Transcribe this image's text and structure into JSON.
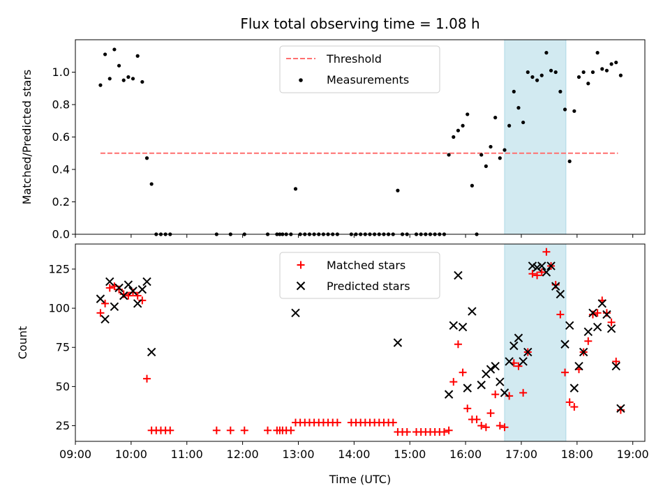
{
  "title": "Flux total observing time = 1.08 h",
  "colors": {
    "threshold": "#ff6f6f",
    "measurement": "#000000",
    "matched": "#ff0000",
    "predicted": "#000000",
    "highlight": "#add8e6"
  },
  "chart_data": [
    {
      "type": "scatter",
      "ylabel": "Matched/Predicted stars",
      "xlim": [
        "09:00",
        "19:13"
      ],
      "ylim": [
        0,
        1.2
      ],
      "yticks": [
        "0.0",
        "0.2",
        "0.4",
        "0.6",
        "0.8",
        "1.0"
      ],
      "highlight_span": [
        "16:42",
        "17:48"
      ],
      "threshold": {
        "name": "Threshold",
        "value": 0.5,
        "x_range": [
          "09:27",
          "18:44"
        ]
      },
      "legend": {
        "position": "top-center",
        "entries": [
          "Threshold",
          "Measurements"
        ]
      },
      "series": [
        {
          "name": "Measurements",
          "points": [
            [
              "09:27",
              0.92
            ],
            [
              "09:32",
              1.11
            ],
            [
              "09:37",
              0.96
            ],
            [
              "09:42",
              1.14
            ],
            [
              "09:47",
              1.04
            ],
            [
              "09:52",
              0.95
            ],
            [
              "09:57",
              0.97
            ],
            [
              "10:02",
              0.96
            ],
            [
              "10:07",
              1.1
            ],
            [
              "10:12",
              0.94
            ],
            [
              "10:17",
              0.47
            ],
            [
              "10:22",
              0.31
            ],
            [
              "10:27",
              0.0
            ],
            [
              "10:32",
              0.0
            ],
            [
              "10:37",
              0.0
            ],
            [
              "10:42",
              0.0
            ],
            [
              "11:32",
              0.0
            ],
            [
              "11:47",
              0.0
            ],
            [
              "12:02",
              0.0
            ],
            [
              "12:27",
              0.0
            ],
            [
              "12:37",
              0.0
            ],
            [
              "12:40",
              0.0
            ],
            [
              "12:43",
              0.0
            ],
            [
              "12:47",
              0.0
            ],
            [
              "12:52",
              0.0
            ],
            [
              "12:57",
              0.28
            ],
            [
              "13:02",
              0.0
            ],
            [
              "13:07",
              0.0
            ],
            [
              "13:12",
              0.0
            ],
            [
              "13:17",
              0.0
            ],
            [
              "13:22",
              0.0
            ],
            [
              "13:27",
              0.0
            ],
            [
              "13:32",
              0.0
            ],
            [
              "13:37",
              0.0
            ],
            [
              "13:42",
              0.0
            ],
            [
              "13:57",
              0.0
            ],
            [
              "14:02",
              0.0
            ],
            [
              "14:07",
              0.0
            ],
            [
              "14:12",
              0.0
            ],
            [
              "14:17",
              0.0
            ],
            [
              "14:22",
              0.0
            ],
            [
              "14:27",
              0.0
            ],
            [
              "14:32",
              0.0
            ],
            [
              "14:37",
              0.0
            ],
            [
              "14:42",
              0.0
            ],
            [
              "14:47",
              0.27
            ],
            [
              "14:52",
              0.0
            ],
            [
              "14:57",
              0.0
            ],
            [
              "15:07",
              0.0
            ],
            [
              "15:12",
              0.0
            ],
            [
              "15:17",
              0.0
            ],
            [
              "15:22",
              0.0
            ],
            [
              "15:27",
              0.0
            ],
            [
              "15:32",
              0.0
            ],
            [
              "15:37",
              0.0
            ],
            [
              "15:42",
              0.49
            ],
            [
              "15:47",
              0.6
            ],
            [
              "15:52",
              0.64
            ],
            [
              "15:57",
              0.67
            ],
            [
              "16:02",
              0.74
            ],
            [
              "16:07",
              0.3
            ],
            [
              "16:12",
              0.0
            ],
            [
              "16:17",
              0.49
            ],
            [
              "16:22",
              0.42
            ],
            [
              "16:27",
              0.54
            ],
            [
              "16:32",
              0.72
            ],
            [
              "16:37",
              0.47
            ],
            [
              "16:42",
              0.52
            ],
            [
              "16:47",
              0.67
            ],
            [
              "16:52",
              0.88
            ],
            [
              "16:57",
              0.78
            ],
            [
              "17:02",
              0.69
            ],
            [
              "17:07",
              1.0
            ],
            [
              "17:12",
              0.97
            ],
            [
              "17:17",
              0.95
            ],
            [
              "17:22",
              0.98
            ],
            [
              "17:27",
              1.12
            ],
            [
              "17:32",
              1.01
            ],
            [
              "17:37",
              1.0
            ],
            [
              "17:42",
              0.88
            ],
            [
              "17:47",
              0.77
            ],
            [
              "17:52",
              0.45
            ],
            [
              "17:57",
              0.76
            ],
            [
              "18:02",
              0.97
            ],
            [
              "18:07",
              1.0
            ],
            [
              "18:12",
              0.93
            ],
            [
              "18:17",
              1.0
            ],
            [
              "18:22",
              1.12
            ],
            [
              "18:27",
              1.02
            ],
            [
              "18:32",
              1.01
            ],
            [
              "18:37",
              1.05
            ],
            [
              "18:42",
              1.06
            ],
            [
              "18:47",
              0.98
            ]
          ]
        }
      ]
    },
    {
      "type": "scatter",
      "xlabel": "Time (UTC)",
      "ylabel": "Count",
      "xlim": [
        "09:00",
        "19:13"
      ],
      "ylim": [
        15,
        141
      ],
      "yticks": [
        "25",
        "50",
        "75",
        "100",
        "125"
      ],
      "xticks": [
        "09:00",
        "10:00",
        "11:00",
        "12:00",
        "13:00",
        "14:00",
        "15:00",
        "16:00",
        "17:00",
        "18:00",
        "19:00"
      ],
      "highlight_span": [
        "16:42",
        "17:48"
      ],
      "legend": {
        "position": "top-center",
        "entries": [
          "Matched stars",
          "Predicted stars"
        ]
      },
      "series": [
        {
          "name": "Matched stars",
          "marker": "plus",
          "points": [
            [
              "09:27",
              97
            ],
            [
              "09:32",
              103
            ],
            [
              "09:37",
              113
            ],
            [
              "09:42",
              114
            ],
            [
              "09:47",
              112
            ],
            [
              "09:52",
              109
            ],
            [
              "09:57",
              108
            ],
            [
              "10:02",
              110
            ],
            [
              "10:07",
              108
            ],
            [
              "10:12",
              105
            ],
            [
              "10:17",
              55
            ],
            [
              "10:22",
              22
            ],
            [
              "10:27",
              22
            ],
            [
              "10:32",
              22
            ],
            [
              "10:37",
              22
            ],
            [
              "10:42",
              22
            ],
            [
              "11:32",
              22
            ],
            [
              "11:47",
              22
            ],
            [
              "12:02",
              22
            ],
            [
              "12:27",
              22
            ],
            [
              "12:37",
              22
            ],
            [
              "12:40",
              22
            ],
            [
              "12:43",
              22
            ],
            [
              "12:47",
              22
            ],
            [
              "12:52",
              22
            ],
            [
              "12:57",
              27
            ],
            [
              "13:02",
              27
            ],
            [
              "13:07",
              27
            ],
            [
              "13:12",
              27
            ],
            [
              "13:17",
              27
            ],
            [
              "13:22",
              27
            ],
            [
              "13:27",
              27
            ],
            [
              "13:32",
              27
            ],
            [
              "13:37",
              27
            ],
            [
              "13:42",
              27
            ],
            [
              "13:57",
              27
            ],
            [
              "14:02",
              27
            ],
            [
              "14:07",
              27
            ],
            [
              "14:12",
              27
            ],
            [
              "14:17",
              27
            ],
            [
              "14:22",
              27
            ],
            [
              "14:27",
              27
            ],
            [
              "14:32",
              27
            ],
            [
              "14:37",
              27
            ],
            [
              "14:42",
              27
            ],
            [
              "14:47",
              21
            ],
            [
              "14:52",
              21
            ],
            [
              "14:57",
              21
            ],
            [
              "15:07",
              21
            ],
            [
              "15:12",
              21
            ],
            [
              "15:17",
              21
            ],
            [
              "15:22",
              21
            ],
            [
              "15:27",
              21
            ],
            [
              "15:32",
              21
            ],
            [
              "15:37",
              21
            ],
            [
              "15:42",
              22
            ],
            [
              "15:47",
              53
            ],
            [
              "15:52",
              77
            ],
            [
              "15:57",
              59
            ],
            [
              "16:02",
              36
            ],
            [
              "16:07",
              29
            ],
            [
              "16:12",
              29
            ],
            [
              "16:17",
              25
            ],
            [
              "16:22",
              24
            ],
            [
              "16:27",
              33
            ],
            [
              "16:32",
              45
            ],
            [
              "16:37",
              25
            ],
            [
              "16:42",
              24
            ],
            [
              "16:47",
              44
            ],
            [
              "16:52",
              65
            ],
            [
              "16:57",
              63
            ],
            [
              "17:02",
              46
            ],
            [
              "17:07",
              72
            ],
            [
              "17:12",
              122
            ],
            [
              "17:17",
              121
            ],
            [
              "17:22",
              123
            ],
            [
              "17:27",
              136
            ],
            [
              "17:32",
              127
            ],
            [
              "17:37",
              115
            ],
            [
              "17:42",
              96
            ],
            [
              "17:47",
              59
            ],
            [
              "17:52",
              40
            ],
            [
              "17:57",
              37
            ],
            [
              "18:02",
              61
            ],
            [
              "18:07",
              72
            ],
            [
              "18:12",
              79
            ],
            [
              "18:17",
              96
            ],
            [
              "18:22",
              97
            ],
            [
              "18:27",
              105
            ],
            [
              "18:32",
              97
            ],
            [
              "18:37",
              91
            ],
            [
              "18:42",
              66
            ],
            [
              "18:47",
              35
            ]
          ]
        },
        {
          "name": "Predicted stars",
          "marker": "x",
          "points": [
            [
              "09:27",
              106
            ],
            [
              "09:32",
              93
            ],
            [
              "09:37",
              117
            ],
            [
              "09:42",
              101
            ],
            [
              "09:47",
              113
            ],
            [
              "09:52",
              108
            ],
            [
              "09:57",
              115
            ],
            [
              "10:02",
              111
            ],
            [
              "10:07",
              103
            ],
            [
              "10:12",
              112
            ],
            [
              "10:17",
              117
            ],
            [
              "10:22",
              72
            ],
            [
              "12:57",
              97
            ],
            [
              "14:47",
              78
            ],
            [
              "15:42",
              45
            ],
            [
              "15:47",
              89
            ],
            [
              "15:52",
              121
            ],
            [
              "15:57",
              88
            ],
            [
              "16:02",
              49
            ],
            [
              "16:07",
              98
            ],
            [
              "16:17",
              51
            ],
            [
              "16:22",
              58
            ],
            [
              "16:27",
              61
            ],
            [
              "16:32",
              63
            ],
            [
              "16:37",
              53
            ],
            [
              "16:42",
              46
            ],
            [
              "16:47",
              66
            ],
            [
              "16:52",
              76
            ],
            [
              "16:57",
              81
            ],
            [
              "17:02",
              66
            ],
            [
              "17:07",
              72
            ],
            [
              "17:12",
              127
            ],
            [
              "17:17",
              126
            ],
            [
              "17:22",
              127
            ],
            [
              "17:27",
              123
            ],
            [
              "17:32",
              127
            ],
            [
              "17:37",
              114
            ],
            [
              "17:42",
              109
            ],
            [
              "17:47",
              77
            ],
            [
              "17:52",
              89
            ],
            [
              "17:57",
              49
            ],
            [
              "18:02",
              63
            ],
            [
              "18:07",
              72
            ],
            [
              "18:12",
              85
            ],
            [
              "18:17",
              97
            ],
            [
              "18:22",
              88
            ],
            [
              "18:27",
              103
            ],
            [
              "18:32",
              96
            ],
            [
              "18:37",
              87
            ],
            [
              "18:42",
              63
            ],
            [
              "18:47",
              36
            ]
          ]
        }
      ]
    }
  ]
}
